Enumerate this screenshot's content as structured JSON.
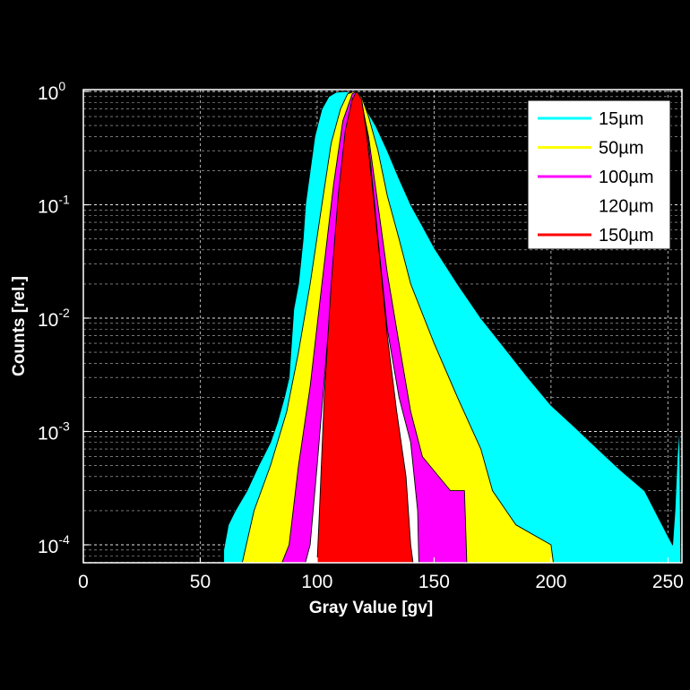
{
  "chart_data": {
    "type": "area",
    "title": "",
    "xlabel": "Gray Value [gv]",
    "ylabel": "Counts [rel.]",
    "xlim": [
      0,
      256
    ],
    "ylim": [
      7e-05,
      1.1
    ],
    "yscale": "log",
    "grid": true,
    "legend_position": "top-right",
    "background": "#000000",
    "xticks": [
      0,
      50,
      100,
      150,
      200,
      250
    ],
    "yticks": [
      {
        "value": 1,
        "base": "10",
        "exp": "0"
      },
      {
        "value": 0.1,
        "base": "10",
        "exp": "-1"
      },
      {
        "value": 0.01,
        "base": "10",
        "exp": "-2"
      },
      {
        "value": 0.001,
        "base": "10",
        "exp": "-3"
      },
      {
        "value": 0.0001,
        "base": "10",
        "exp": "-4"
      }
    ],
    "series": [
      {
        "name": "15µm",
        "color": "#00ffff",
        "points": [
          [
            60,
            7e-05
          ],
          [
            60,
            9e-05
          ],
          [
            62,
            0.00015
          ],
          [
            65,
            0.0002
          ],
          [
            70,
            0.0003
          ],
          [
            75,
            0.0005
          ],
          [
            80,
            0.0008
          ],
          [
            83,
            0.0012
          ],
          [
            86,
            0.002
          ],
          [
            88,
            0.003
          ],
          [
            89,
            0.006
          ],
          [
            90,
            0.012
          ],
          [
            92,
            0.02
          ],
          [
            94,
            0.05
          ],
          [
            95,
            0.1
          ],
          [
            97,
            0.2
          ],
          [
            99,
            0.4
          ],
          [
            102,
            0.7
          ],
          [
            105,
            0.9
          ],
          [
            108,
            0.98
          ],
          [
            112,
            1.0
          ],
          [
            116,
            0.95
          ],
          [
            120,
            0.75
          ],
          [
            125,
            0.5
          ],
          [
            130,
            0.3
          ],
          [
            135,
            0.17
          ],
          [
            140,
            0.1
          ],
          [
            145,
            0.065
          ],
          [
            150,
            0.042
          ],
          [
            160,
            0.02
          ],
          [
            170,
            0.01
          ],
          [
            180,
            0.0055
          ],
          [
            190,
            0.003
          ],
          [
            200,
            0.0017
          ],
          [
            210,
            0.0011
          ],
          [
            220,
            0.0007
          ],
          [
            230,
            0.00045
          ],
          [
            240,
            0.0003
          ],
          [
            250,
            0.00012
          ],
          [
            252,
            0.0001
          ],
          [
            253,
            0.0002
          ],
          [
            254,
            0.0006
          ],
          [
            255,
            0.00115
          ],
          [
            255.5,
            7e-05
          ]
        ]
      },
      {
        "name": "50µm",
        "color": "#ffff00",
        "points": [
          [
            68,
            7e-05
          ],
          [
            73,
            0.0002
          ],
          [
            80,
            0.0005
          ],
          [
            87,
            0.0015
          ],
          [
            92,
            0.005
          ],
          [
            97,
            0.02
          ],
          [
            102,
            0.1
          ],
          [
            106,
            0.35
          ],
          [
            110,
            0.7
          ],
          [
            113,
            0.95
          ],
          [
            116,
            1.0
          ],
          [
            119,
            0.9
          ],
          [
            122,
            0.6
          ],
          [
            126,
            0.3
          ],
          [
            130,
            0.12
          ],
          [
            135,
            0.05
          ],
          [
            140,
            0.02
          ],
          [
            150,
            0.006
          ],
          [
            160,
            0.002
          ],
          [
            170,
            0.0007
          ],
          [
            175,
            0.0003
          ],
          [
            185,
            0.00015
          ],
          [
            200,
            0.0001
          ],
          [
            201,
            7e-05
          ]
        ]
      },
      {
        "name": "100µm",
        "color": "#ff00ff",
        "points": [
          [
            85,
            7e-05
          ],
          [
            88,
            0.0001
          ],
          [
            92,
            0.0005
          ],
          [
            97,
            0.0025
          ],
          [
            102,
            0.02
          ],
          [
            107,
            0.15
          ],
          [
            111,
            0.55
          ],
          [
            115,
            0.95
          ],
          [
            117,
            1.0
          ],
          [
            119,
            0.8
          ],
          [
            122,
            0.4
          ],
          [
            126,
            0.1
          ],
          [
            130,
            0.025
          ],
          [
            135,
            0.006
          ],
          [
            140,
            0.0015
          ],
          [
            145,
            0.0006
          ],
          [
            157,
            0.0003
          ],
          [
            163,
            0.0003
          ],
          [
            164,
            7e-05
          ]
        ]
      },
      {
        "name": "120µm",
        "color": "#ffffff",
        "points": [
          [
            95,
            7e-05
          ],
          [
            97,
            0.0001
          ],
          [
            100,
            0.0005
          ],
          [
            104,
            0.005
          ],
          [
            108,
            0.05
          ],
          [
            112,
            0.4
          ],
          [
            115,
            0.85
          ],
          [
            117,
            1.0
          ],
          [
            119,
            0.85
          ],
          [
            122,
            0.35
          ],
          [
            126,
            0.05
          ],
          [
            130,
            0.008
          ],
          [
            135,
            0.002
          ],
          [
            140,
            0.0008
          ],
          [
            143,
            0.0002
          ],
          [
            143.5,
            7e-05
          ]
        ]
      },
      {
        "name": "150µm",
        "color": "#ff0000",
        "points": [
          [
            100,
            7e-05
          ],
          [
            101,
            0.0002
          ],
          [
            103,
            0.002
          ],
          [
            106,
            0.02
          ],
          [
            109,
            0.12
          ],
          [
            112,
            0.45
          ],
          [
            115,
            0.85
          ],
          [
            117,
            1.0
          ],
          [
            119,
            0.85
          ],
          [
            121,
            0.45
          ],
          [
            124,
            0.12
          ],
          [
            127,
            0.03
          ],
          [
            130,
            0.007
          ],
          [
            134,
            0.0015
          ],
          [
            138,
            0.0004
          ],
          [
            140,
            0.0001
          ],
          [
            141,
            7e-05
          ]
        ]
      }
    ]
  }
}
